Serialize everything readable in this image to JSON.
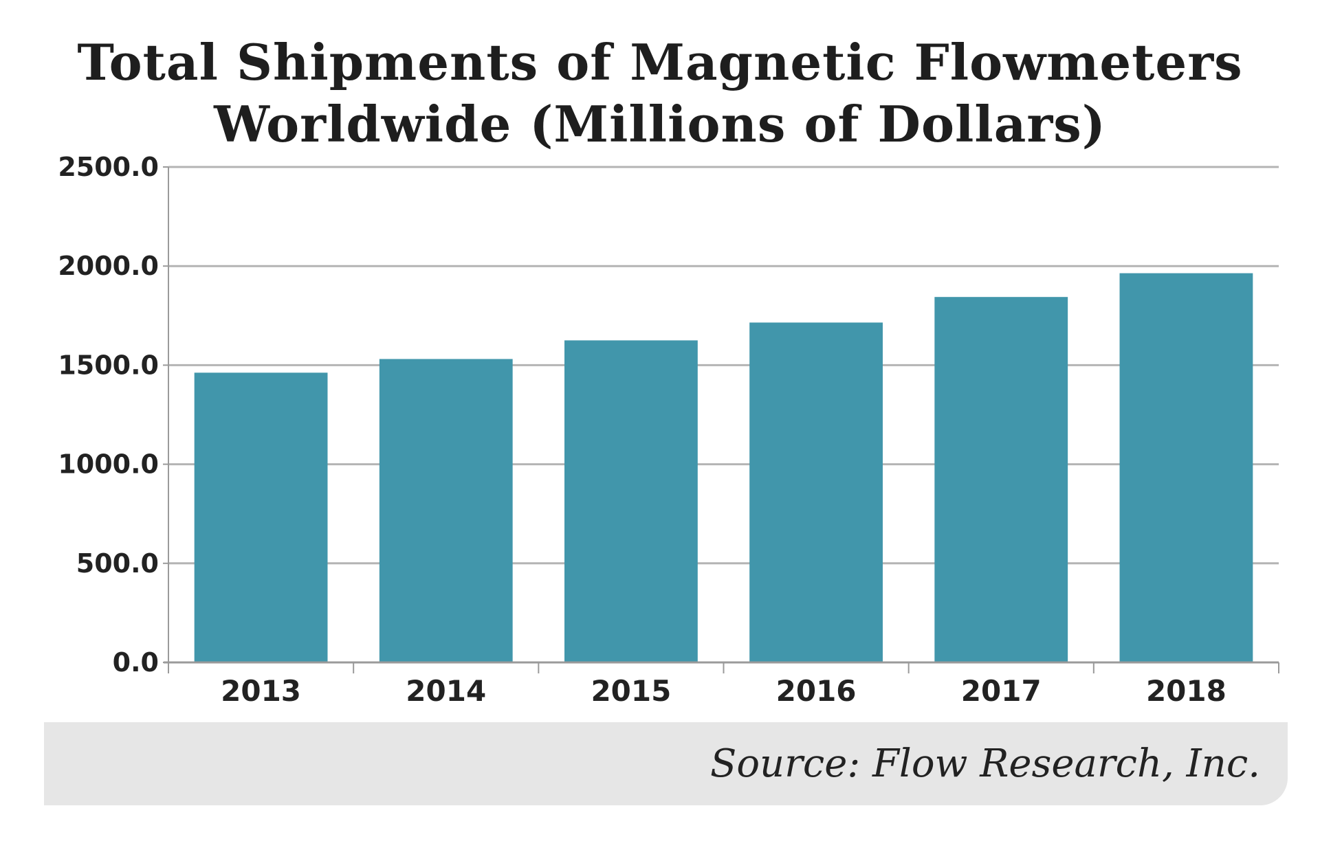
{
  "chart_data": {
    "type": "bar",
    "title": "Total Shipments of Magnetic Flowmeters Worldwide (Millions of Dollars)",
    "title_lines": [
      "Total Shipments of Magnetic Flowmeters",
      "Worldwide (Millions of Dollars)"
    ],
    "categories": [
      "2013",
      "2014",
      "2015",
      "2016",
      "2017",
      "2018"
    ],
    "values": [
      1462,
      1531,
      1625,
      1715,
      1844,
      1964
    ],
    "xlabel": "",
    "ylabel": "",
    "ylim": [
      0,
      2500
    ],
    "yticks": [
      "0.0",
      "500.0",
      "1000.0",
      "1500.0",
      "2000.0",
      "2500.0"
    ],
    "grid": true,
    "legend": null,
    "bar_color": "#4196ab",
    "gridline_color": "#b4b4b4",
    "source": "Source: Flow Research, Inc."
  }
}
